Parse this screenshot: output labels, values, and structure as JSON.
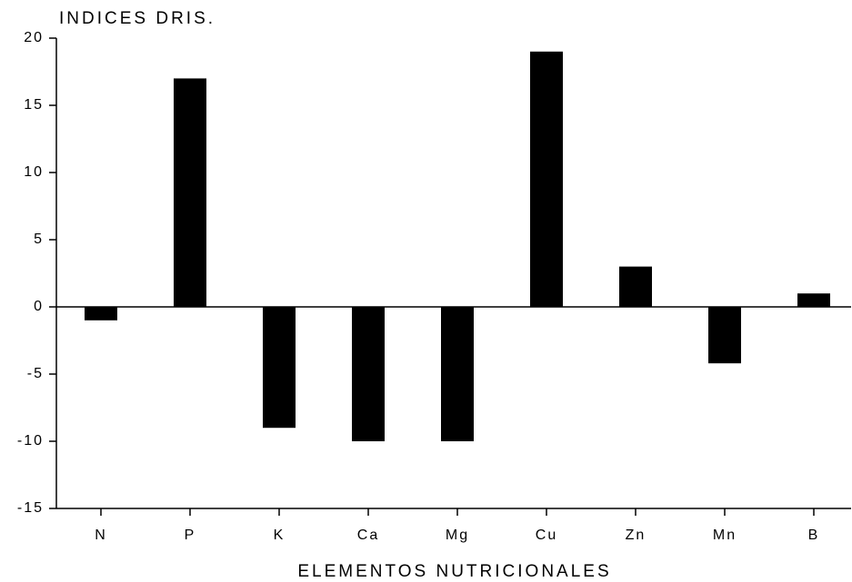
{
  "chart_data": {
    "type": "bar",
    "y_label": "INDICES DRIS.",
    "x_label": "ELEMENTOS NUTRICIONALES",
    "categories": [
      "N",
      "P",
      "K",
      "Ca",
      "Mg",
      "Cu",
      "Zn",
      "Mn",
      "B"
    ],
    "values": [
      -1,
      17,
      -9,
      -10,
      -10,
      19,
      3,
      -4.2,
      1
    ],
    "color": "#000000",
    "ylim": [
      -15,
      20
    ],
    "yticks": [
      -15,
      -10,
      -5,
      0,
      5,
      10,
      15,
      20
    ],
    "grid": false
  }
}
